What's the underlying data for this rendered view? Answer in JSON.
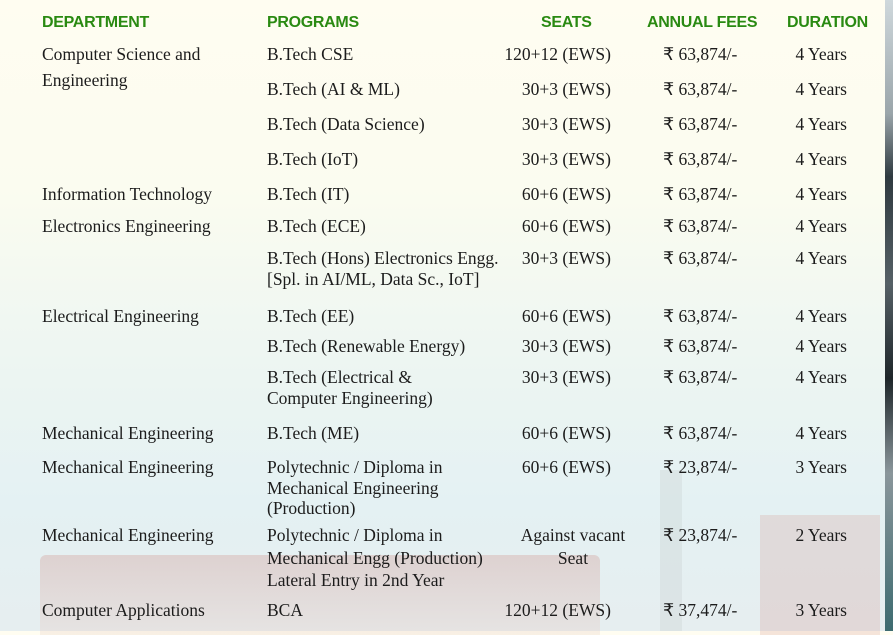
{
  "headers": {
    "department": "DEPARTMENT",
    "programs": "PROGRAMS",
    "seats": "SEATS",
    "fees": "ANNUAL FEES",
    "duration": "DURATION"
  },
  "rows": [
    {
      "department": [
        "Computer Science and",
        "Engineering"
      ],
      "program": [
        "B.Tech CSE"
      ],
      "seats": [
        "120+12 (EWS)"
      ],
      "fees": "₹ 63,874/-",
      "duration": "4 Years"
    },
    {
      "department": [],
      "program": [
        "B.Tech (AI & ML)"
      ],
      "seats": [
        "30+3 (EWS)"
      ],
      "fees": "₹ 63,874/-",
      "duration": "4 Years"
    },
    {
      "department": [],
      "program": [
        "B.Tech (Data Science)"
      ],
      "seats": [
        "30+3 (EWS)"
      ],
      "fees": "₹ 63,874/-",
      "duration": "4 Years"
    },
    {
      "department": [],
      "program": [
        "B.Tech (IoT)"
      ],
      "seats": [
        "30+3 (EWS)"
      ],
      "fees": "₹ 63,874/-",
      "duration": "4 Years"
    },
    {
      "department": [
        "Information Technology"
      ],
      "program": [
        "B.Tech (IT)"
      ],
      "seats": [
        "60+6 (EWS)"
      ],
      "fees": "₹ 63,874/-",
      "duration": "4 Years"
    },
    {
      "department": [
        "Electronics Engineering"
      ],
      "program": [
        "B.Tech (ECE)"
      ],
      "seats": [
        "60+6 (EWS)"
      ],
      "fees": "₹ 63,874/-",
      "duration": "4 Years"
    },
    {
      "department": [],
      "program": [
        "B.Tech (Hons) Electronics Engg.",
        "[Spl. in AI/ML, Data Sc., IoT]"
      ],
      "seats": [
        "30+3 (EWS)"
      ],
      "fees": "₹ 63,874/-",
      "duration": "4 Years"
    },
    {
      "department": [
        "Electrical Engineering"
      ],
      "program": [
        "B.Tech (EE)"
      ],
      "seats": [
        "60+6 (EWS)"
      ],
      "fees": "₹ 63,874/-",
      "duration": "4 Years"
    },
    {
      "department": [],
      "program": [
        "B.Tech (Renewable Energy)"
      ],
      "seats": [
        "30+3 (EWS)"
      ],
      "fees": "₹ 63,874/-",
      "duration": "4 Years"
    },
    {
      "department": [],
      "program": [
        "B.Tech (Electrical &",
        "Computer Engineering)"
      ],
      "seats": [
        "30+3 (EWS)"
      ],
      "fees": "₹ 63,874/-",
      "duration": "4 Years"
    },
    {
      "department": [
        "Mechanical Engineering"
      ],
      "program": [
        "B.Tech (ME)"
      ],
      "seats": [
        "60+6 (EWS)"
      ],
      "fees": "₹ 63,874/-",
      "duration": "4 Years"
    },
    {
      "department": [
        "Mechanical Engineering"
      ],
      "program": [
        "Polytechnic / Diploma in",
        "Mechanical Engineering",
        "(Production)"
      ],
      "seats": [
        "60+6 (EWS)"
      ],
      "fees": "₹ 23,874/-",
      "duration": "3 Years"
    },
    {
      "department": [
        "Mechanical Engineering"
      ],
      "program": [
        "Polytechnic / Diploma in",
        "Mechanical Engg (Production)",
        "Lateral Entry in 2nd Year"
      ],
      "seats": [
        "Against vacant",
        "Seat"
      ],
      "fees": "₹ 23,874/-",
      "duration": "2 Years"
    },
    {
      "department": [
        "Computer Applications"
      ],
      "program": [
        "BCA"
      ],
      "seats": [
        "120+12 (EWS)"
      ],
      "fees": "₹ 37,474/-",
      "duration": "3 Years"
    }
  ],
  "colors": {
    "header": "#2a8a12",
    "text": "#1c1c1c"
  }
}
